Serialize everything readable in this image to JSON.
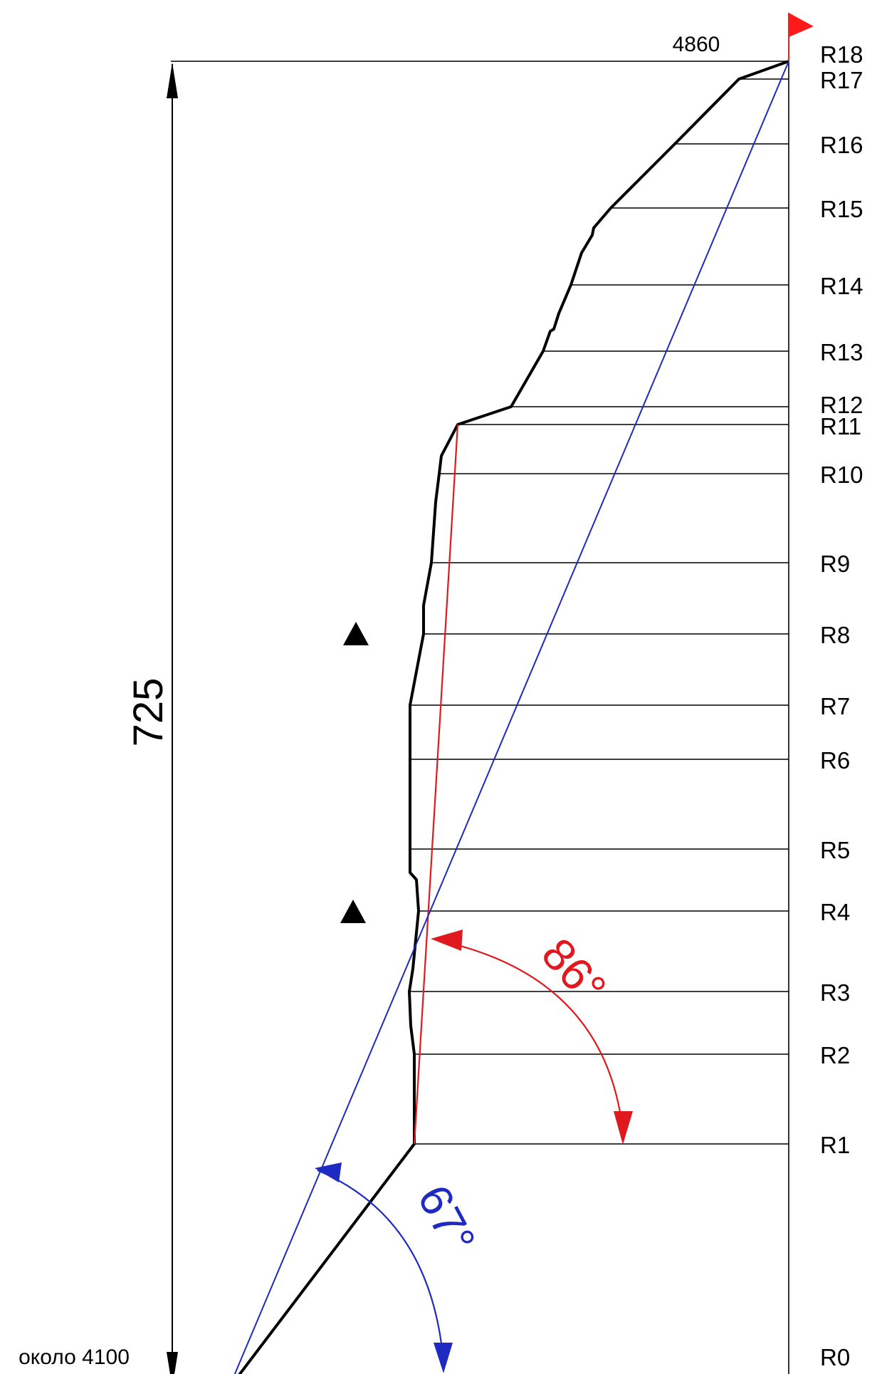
{
  "title": "",
  "summit_altitude": "4860",
  "base_altitude": "около 4100",
  "height_difference": "725",
  "pitches": [
    "R0",
    "R1",
    "R2",
    "R3",
    "R4",
    "R5",
    "R6",
    "R7",
    "R8",
    "R9",
    "R10",
    "R11",
    "R12",
    "R13",
    "R14",
    "R15",
    "R16",
    "R17",
    "R18"
  ],
  "angles": {
    "route_average": "86°",
    "overall_average": "67°"
  },
  "colors": {
    "route_profile": "#000000",
    "red_angle": "#e0191f",
    "blue_angle": "#1f2ac0",
    "flag": "#ff1a1a"
  },
  "icons": [
    "summit-flag-icon",
    "bivouac-triangle-icon",
    "bivouac-triangle-icon"
  ]
}
